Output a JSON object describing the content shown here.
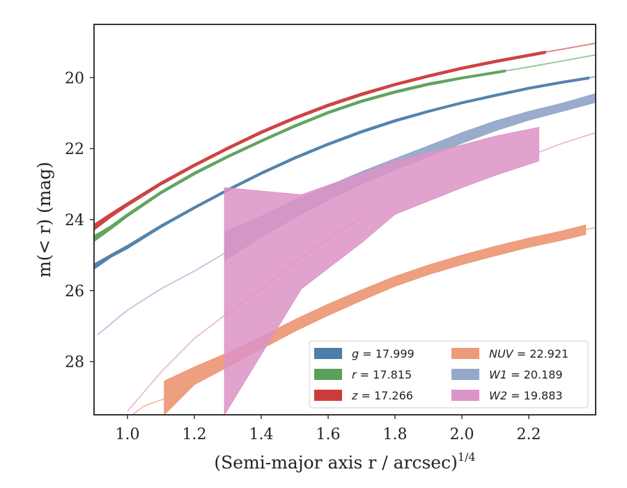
{
  "chart_data": {
    "type": "area",
    "xlabel": "(Semi-major axis r / arcsec)",
    "xlabel_exponent": "1/4",
    "ylabel": "m(< r) (mag)",
    "xlim": [
      0.9,
      2.4
    ],
    "ylim": [
      29.5,
      18.5
    ],
    "y_inverted": true,
    "xticks": [
      "1.0",
      "1.2",
      "1.4",
      "1.6",
      "1.8",
      "2.0",
      "2.2"
    ],
    "xtick_values": [
      1.0,
      1.2,
      1.4,
      1.6,
      1.8,
      2.0,
      2.2
    ],
    "yticks": [
      "20",
      "22",
      "24",
      "26",
      "28"
    ],
    "ytick_values": [
      20,
      22,
      24,
      26,
      28
    ],
    "grid": false,
    "legend_position": "lower-right",
    "series": [
      {
        "name": "g = 17.999",
        "color": "#4c7eaa",
        "band": [
          [
            0.9,
            25.25,
            25.4
          ],
          [
            0.95,
            24.98,
            25.07
          ],
          [
            1.0,
            24.72,
            24.82
          ],
          [
            1.1,
            24.15,
            24.23
          ],
          [
            1.2,
            23.63,
            23.7
          ],
          [
            1.3,
            23.13,
            23.2
          ],
          [
            1.4,
            22.66,
            22.73
          ],
          [
            1.5,
            22.23,
            22.3
          ],
          [
            1.6,
            21.84,
            21.91
          ],
          [
            1.7,
            21.49,
            21.56
          ],
          [
            1.8,
            21.18,
            21.25
          ],
          [
            1.9,
            20.92,
            20.98
          ],
          [
            2.0,
            20.68,
            20.74
          ],
          [
            2.1,
            20.47,
            20.53
          ],
          [
            2.2,
            20.27,
            20.33
          ],
          [
            2.3,
            20.1,
            20.16
          ],
          [
            2.38,
            19.98,
            20.04
          ]
        ],
        "extension": [
          [
            2.38,
            20.01
          ],
          [
            2.4,
            19.97
          ]
        ]
      },
      {
        "name": "r = 17.815",
        "color": "#5aa05a",
        "band": [
          [
            0.9,
            24.45,
            24.62
          ],
          [
            0.95,
            24.17,
            24.28
          ],
          [
            1.0,
            23.83,
            23.92
          ],
          [
            1.1,
            23.2,
            23.28
          ],
          [
            1.2,
            22.66,
            22.74
          ],
          [
            1.3,
            22.19,
            22.26
          ],
          [
            1.4,
            21.75,
            21.82
          ],
          [
            1.5,
            21.33,
            21.4
          ],
          [
            1.6,
            20.95,
            21.02
          ],
          [
            1.7,
            20.63,
            20.7
          ],
          [
            1.8,
            20.37,
            20.44
          ],
          [
            1.9,
            20.15,
            20.22
          ],
          [
            2.0,
            19.98,
            20.04
          ],
          [
            2.13,
            19.78,
            19.84
          ]
        ],
        "extension": [
          [
            2.13,
            19.81
          ],
          [
            2.2,
            19.7
          ],
          [
            2.3,
            19.53
          ],
          [
            2.4,
            19.36
          ]
        ]
      },
      {
        "name": "z = 17.266",
        "color": "#cc3b3b",
        "band": [
          [
            0.9,
            24.13,
            24.3
          ],
          [
            0.95,
            23.82,
            23.94
          ],
          [
            1.0,
            23.52,
            23.62
          ],
          [
            1.1,
            22.94,
            23.03
          ],
          [
            1.2,
            22.43,
            22.51
          ],
          [
            1.3,
            21.95,
            22.03
          ],
          [
            1.4,
            21.5,
            21.58
          ],
          [
            1.5,
            21.1,
            21.18
          ],
          [
            1.6,
            20.74,
            20.82
          ],
          [
            1.7,
            20.43,
            20.51
          ],
          [
            1.8,
            20.16,
            20.23
          ],
          [
            1.9,
            19.92,
            19.99
          ],
          [
            2.0,
            19.7,
            19.77
          ],
          [
            2.1,
            19.51,
            19.58
          ],
          [
            2.25,
            19.25,
            19.32
          ]
        ],
        "extension": [
          [
            2.25,
            19.28
          ],
          [
            2.3,
            19.2
          ],
          [
            2.4,
            19.03
          ]
        ]
      },
      {
        "name": "NUV = 22.921",
        "color": "#ec9a78",
        "band": [
          [
            1.11,
            28.55,
            29.5
          ],
          [
            1.2,
            28.15,
            28.65
          ],
          [
            1.3,
            27.75,
            28.15
          ],
          [
            1.4,
            27.3,
            27.65
          ],
          [
            1.5,
            26.82,
            27.15
          ],
          [
            1.6,
            26.38,
            26.7
          ],
          [
            1.7,
            25.98,
            26.28
          ],
          [
            1.8,
            25.6,
            25.88
          ],
          [
            1.9,
            25.28,
            25.55
          ],
          [
            2.0,
            25.0,
            25.27
          ],
          [
            2.1,
            24.75,
            25.02
          ],
          [
            2.2,
            24.52,
            24.78
          ],
          [
            2.3,
            24.32,
            24.58
          ],
          [
            2.37,
            24.15,
            24.42
          ]
        ],
        "extension": [
          [
            1.0,
            29.6
          ],
          [
            1.05,
            29.25
          ],
          [
            1.11,
            29.05
          ]
        ],
        "extension_end": [
          [
            2.37,
            24.28
          ],
          [
            2.4,
            24.23
          ]
        ]
      },
      {
        "name": "W1 = 20.189",
        "color": "#95a8c8",
        "band": [
          [
            1.29,
            24.35,
            25.15
          ],
          [
            1.4,
            23.9,
            24.5
          ],
          [
            1.5,
            23.45,
            23.95
          ],
          [
            1.6,
            23.05,
            23.45
          ],
          [
            1.7,
            22.65,
            23.0
          ],
          [
            1.8,
            22.28,
            22.6
          ],
          [
            1.9,
            21.92,
            22.22
          ],
          [
            2.0,
            21.55,
            21.85
          ],
          [
            2.1,
            21.22,
            21.5
          ],
          [
            2.2,
            20.95,
            21.2
          ],
          [
            2.3,
            20.72,
            20.95
          ],
          [
            2.4,
            20.45,
            20.7
          ]
        ],
        "extension": [
          [
            0.91,
            27.25
          ],
          [
            1.0,
            26.55
          ],
          [
            1.1,
            25.95
          ],
          [
            1.2,
            25.45
          ],
          [
            1.29,
            24.95
          ]
        ]
      },
      {
        "name": "W2 = 19.883",
        "color": "#dc93c6",
        "band": [
          [
            1.29,
            23.1,
            29.5
          ],
          [
            1.52,
            23.3,
            25.95
          ],
          [
            1.7,
            22.7,
            24.65
          ],
          [
            1.8,
            22.35,
            23.85
          ],
          [
            2.0,
            21.9,
            23.1
          ],
          [
            2.1,
            21.65,
            22.75
          ],
          [
            2.23,
            21.4,
            22.35
          ]
        ],
        "extension": [
          [
            1.0,
            29.4
          ],
          [
            1.1,
            28.3
          ],
          [
            1.2,
            27.35
          ],
          [
            1.29,
            26.7
          ],
          [
            1.4,
            25.95
          ],
          [
            1.5,
            25.2
          ],
          [
            1.6,
            24.55
          ],
          [
            1.7,
            23.95
          ]
        ],
        "extension_end": [
          [
            2.23,
            22.1
          ],
          [
            2.3,
            21.85
          ],
          [
            2.4,
            21.55
          ]
        ]
      }
    ]
  }
}
